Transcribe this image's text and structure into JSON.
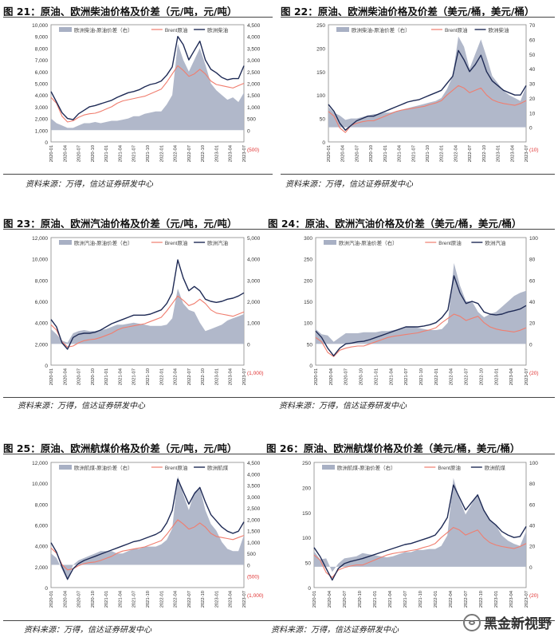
{
  "source_note": "资料来源：万得，信达证券研发中心",
  "watermark": "黑金新视野",
  "colors": {
    "spread": "#a8b0c4",
    "brent": "#f07d6e",
    "product": "#1e2a55",
    "neg_axis": "#e03030"
  },
  "chart_data": [
    {
      "id": "fig21",
      "type": "area+line",
      "title": "图 21：原油、欧洲柴油价格及价差（元/吨，元/吨）",
      "legend": [
        "欧洲柴油-原油价差（右）",
        "Brent原油",
        "欧洲柴油"
      ],
      "x_ticks": [
        "2020-01",
        "2020-04",
        "2020-07",
        "2020-10",
        "2021-01",
        "2021-04",
        "2021-07",
        "2021-10",
        "2022-01",
        "2022-04",
        "2022-07",
        "2022-10",
        "2023-01",
        "2023-04",
        "2023-07"
      ],
      "y_left": {
        "range": [
          0,
          10000
        ],
        "ticks": [
          "0",
          "1,000",
          "2,000",
          "3,000",
          "4,000",
          "5,000",
          "6,000",
          "7,000",
          "8,000",
          "9,000",
          "10,000"
        ]
      },
      "y_right": {
        "range": [
          -500,
          4500
        ],
        "ticks": [
          "(500)",
          "0",
          "500",
          "1,000",
          "1,500",
          "2,000",
          "2,500",
          "3,000",
          "3,500",
          "4,000",
          "4,500"
        ],
        "neg_labels": [
          "(500)"
        ]
      },
      "series": [
        {
          "name": "欧洲柴油",
          "values": [
            4300,
            3400,
            2500,
            2000,
            1900,
            2400,
            2700,
            3000,
            3100,
            3250,
            3400,
            3550,
            3800,
            4000,
            4200,
            4300,
            4450,
            4700,
            4900,
            5000,
            5200,
            5700,
            6400,
            9000,
            8300,
            7000,
            7800,
            8600,
            7000,
            6200,
            5900,
            5500,
            5300,
            5400,
            5400,
            6500
          ]
        },
        {
          "name": "Brent原油",
          "values": [
            3800,
            3300,
            2200,
            1700,
            1800,
            2100,
            2300,
            2400,
            2450,
            2600,
            2800,
            3000,
            3300,
            3500,
            3600,
            3700,
            3800,
            3900,
            4100,
            4300,
            4500,
            5100,
            5800,
            6500,
            6100,
            5600,
            5800,
            6200,
            5800,
            5200,
            4900,
            4800,
            4700,
            4600,
            4800,
            5000
          ]
        },
        {
          "name": "欧洲柴油-原油价差（右）",
          "values": [
            500,
            300,
            200,
            100,
            100,
            200,
            300,
            300,
            350,
            300,
            350,
            400,
            400,
            450,
            500,
            600,
            600,
            700,
            750,
            800,
            800,
            1100,
            1500,
            3700,
            3000,
            2500,
            3000,
            3500,
            2800,
            2000,
            1700,
            1500,
            1300,
            1400,
            1200,
            1600
          ]
        }
      ]
    },
    {
      "id": "fig22",
      "type": "area+line",
      "title": "图 22：原油、欧洲柴油价格及价差（美元/桶，美元/桶）",
      "legend": [
        "欧洲柴油-原油价差（右）",
        "Brent原油",
        "欧洲柴油"
      ],
      "x_ticks": [
        "2020-01",
        "2020-04",
        "2020-07",
        "2020-10",
        "2021-01",
        "2021-04",
        "2021-07",
        "2021-10",
        "2022-01",
        "2022-04",
        "2022-07",
        "2022-10",
        "2023-01",
        "2023-04",
        "2023-07"
      ],
      "y_left": {
        "range": [
          0,
          250
        ],
        "ticks": [
          "0",
          "50",
          "100",
          "150",
          "200",
          "250"
        ]
      },
      "y_right": {
        "range": [
          -10,
          70
        ],
        "ticks": [
          "(10)",
          "0",
          "10",
          "20",
          "30",
          "40",
          "50",
          "60",
          "70"
        ],
        "neg_labels": [
          "(10)"
        ]
      },
      "series": [
        {
          "name": "欧洲柴油",
          "values": [
            80,
            65,
            40,
            25,
            35,
            45,
            50,
            55,
            55,
            60,
            65,
            70,
            75,
            80,
            85,
            88,
            90,
            95,
            100,
            105,
            110,
            125,
            140,
            195,
            175,
            150,
            165,
            185,
            150,
            130,
            120,
            110,
            105,
            100,
            100,
            120
          ]
        },
        {
          "name": "Brent原油",
          "values": [
            65,
            55,
            30,
            20,
            35,
            40,
            43,
            45,
            45,
            50,
            55,
            60,
            65,
            68,
            70,
            72,
            74,
            76,
            80,
            83,
            88,
            100,
            110,
            120,
            115,
            105,
            110,
            115,
            100,
            90,
            85,
            82,
            80,
            78,
            82,
            88
          ]
        },
        {
          "name": "欧洲柴油-原油价差（右）",
          "values": [
            14,
            10,
            8,
            5,
            6,
            6,
            7,
            8,
            9,
            9,
            10,
            10,
            11,
            12,
            13,
            14,
            15,
            16,
            17,
            18,
            20,
            26,
            35,
            62,
            55,
            40,
            50,
            60,
            48,
            35,
            30,
            25,
            22,
            20,
            18,
            28
          ]
        }
      ]
    },
    {
      "id": "fig23",
      "type": "area+line",
      "title": "图 23：原油、欧洲汽油价格及价差（元/吨，元/吨）",
      "legend": [
        "欧洲汽油-原油价差（右）",
        "Brent原油",
        "欧洲汽油"
      ],
      "x_ticks": [
        "2020-01",
        "2020-04",
        "2020-07",
        "2020-10",
        "2021-01",
        "2021-04",
        "2021-07",
        "2021-10",
        "2022-01",
        "2022-04",
        "2022-07",
        "2022-10",
        "2023-01",
        "2023-04",
        "2023-07"
      ],
      "y_left": {
        "range": [
          0,
          12000
        ],
        "ticks": [
          "0",
          "2,000",
          "4,000",
          "6,000",
          "8,000",
          "10,000",
          "12,000"
        ]
      },
      "y_right": {
        "range": [
          -1000,
          5000
        ],
        "ticks": [
          "(1,000)",
          "0",
          "1,000",
          "2,000",
          "3,000",
          "4,000",
          "5,000"
        ],
        "neg_labels": [
          "(1,000)"
        ]
      },
      "series": [
        {
          "name": "欧洲汽油",
          "values": [
            4300,
            3600,
            2100,
            1500,
            2600,
            2900,
            3000,
            3000,
            3100,
            3300,
            3600,
            3900,
            4100,
            4300,
            4500,
            4700,
            4700,
            4700,
            4800,
            5000,
            5200,
            5800,
            6800,
            9900,
            8200,
            7000,
            7400,
            7000,
            6200,
            6000,
            5900,
            6000,
            6200,
            6300,
            6500,
            6800
          ]
        },
        {
          "name": "Brent原油",
          "values": [
            3800,
            3300,
            2200,
            1700,
            1800,
            2100,
            2300,
            2400,
            2450,
            2600,
            2800,
            3000,
            3300,
            3500,
            3600,
            3700,
            3800,
            3900,
            4100,
            4300,
            4500,
            5100,
            5800,
            6500,
            6100,
            5600,
            5800,
            6200,
            5800,
            5200,
            4900,
            4800,
            4700,
            4600,
            4800,
            5000
          ]
        },
        {
          "name": "欧洲汽油-原油价差（右）",
          "values": [
            700,
            450,
            150,
            60,
            500,
            600,
            650,
            600,
            600,
            650,
            700,
            800,
            900,
            900,
            950,
            1000,
            950,
            900,
            850,
            850,
            850,
            900,
            1200,
            2600,
            1900,
            1600,
            1500,
            1000,
            600,
            700,
            800,
            900,
            1100,
            1200,
            1300,
            1400
          ]
        }
      ]
    },
    {
      "id": "fig24",
      "type": "area+line",
      "title": "图 24：原油、欧洲汽油价格及价差（美元/桶，美元/桶）",
      "legend": [
        "欧洲汽油-原油价差（右）",
        "Brent原油",
        "欧洲汽油"
      ],
      "x_ticks": [
        "2020-01",
        "2020-04",
        "2020-07",
        "2020-10",
        "2021-01",
        "2021-04",
        "2021-07",
        "2021-10",
        "2022-01",
        "2022-04",
        "2022-07",
        "2022-10",
        "2023-01",
        "2023-04",
        "2023-07"
      ],
      "y_left": {
        "range": [
          0,
          300
        ],
        "ticks": [
          "0",
          "50",
          "100",
          "150",
          "200",
          "250",
          "300"
        ]
      },
      "y_right": {
        "range": [
          -20,
          100
        ],
        "ticks": [
          "(20)",
          "0",
          "20",
          "40",
          "60",
          "80",
          "100"
        ],
        "neg_labels": [
          "(20)"
        ]
      },
      "series": [
        {
          "name": "欧洲汽油",
          "values": [
            80,
            65,
            40,
            22,
            40,
            50,
            52,
            55,
            56,
            60,
            65,
            70,
            75,
            80,
            85,
            90,
            90,
            90,
            92,
            95,
            100,
            112,
            130,
            210,
            170,
            145,
            150,
            145,
            125,
            120,
            118,
            120,
            125,
            128,
            132,
            140
          ]
        },
        {
          "name": "Brent原油",
          "values": [
            65,
            55,
            30,
            20,
            35,
            40,
            43,
            45,
            45,
            50,
            55,
            60,
            65,
            68,
            70,
            72,
            74,
            76,
            80,
            83,
            88,
            100,
            110,
            120,
            115,
            105,
            110,
            115,
            100,
            90,
            85,
            82,
            80,
            78,
            82,
            88
          ]
        },
        {
          "name": "欧洲汽油-原油价差（右）",
          "values": [
            14,
            9,
            8,
            2,
            6,
            10,
            10,
            10,
            11,
            11,
            11,
            12,
            12,
            13,
            14,
            16,
            16,
            15,
            14,
            13,
            13,
            14,
            20,
            76,
            55,
            40,
            40,
            30,
            25,
            28,
            30,
            35,
            40,
            45,
            48,
            50
          ]
        }
      ]
    },
    {
      "id": "fig25",
      "type": "area+line",
      "title": "图 25：原油、欧洲航煤价格及价差（元/吨，元/吨）",
      "legend": [
        "欧洲航煤-原油价差（右）",
        "Brent原油",
        "欧洲航煤"
      ],
      "x_ticks": [
        "2020-01",
        "2020-04",
        "2020-07",
        "2020-10",
        "2021-01",
        "2021-04",
        "2021-07",
        "2021-10",
        "2022-01",
        "2022-04",
        "2022-07",
        "2022-10",
        "2023-01",
        "2023-04",
        "2023-07"
      ],
      "y_left": {
        "range": [
          0,
          12000
        ],
        "ticks": [
          "0",
          "2,000",
          "4,000",
          "6,000",
          "8,000",
          "10,000",
          "12,000"
        ]
      },
      "y_right": {
        "range": [
          -1000,
          4500
        ],
        "ticks": [
          "(1,000)",
          "(500)",
          "0",
          "500",
          "1,000",
          "1,500",
          "2,000",
          "2,500",
          "3,000",
          "3,500",
          "4,000",
          "4,500"
        ],
        "neg_labels": [
          "(1,000)",
          "(500)"
        ]
      },
      "series": [
        {
          "name": "欧洲航煤",
          "values": [
            4300,
            3400,
            2000,
            800,
            1800,
            2300,
            2600,
            2800,
            3000,
            3200,
            3400,
            3600,
            3800,
            4000,
            4200,
            4400,
            4500,
            4700,
            4900,
            5100,
            5400,
            6200,
            7400,
            10400,
            9200,
            8000,
            9000,
            9600,
            8200,
            7000,
            6400,
            5800,
            5400,
            5200,
            5400,
            6300
          ]
        },
        {
          "name": "Brent原油",
          "values": [
            3800,
            3300,
            2200,
            1700,
            1800,
            2100,
            2300,
            2400,
            2450,
            2600,
            2800,
            3000,
            3300,
            3500,
            3600,
            3700,
            3800,
            3900,
            4100,
            4300,
            4500,
            5100,
            5800,
            6500,
            6100,
            5600,
            5800,
            6200,
            5800,
            5200,
            4900,
            4800,
            4700,
            4600,
            4800,
            5000
          ]
        },
        {
          "name": "欧洲航煤-原油价差（右）",
          "values": [
            500,
            300,
            -200,
            -700,
            0,
            200,
            300,
            400,
            500,
            600,
            600,
            600,
            500,
            500,
            600,
            700,
            700,
            800,
            800,
            800,
            900,
            1100,
            1600,
            3900,
            3100,
            2400,
            3200,
            3400,
            2400,
            1800,
            1500,
            1000,
            700,
            600,
            600,
            1300
          ]
        }
      ]
    },
    {
      "id": "fig26",
      "type": "area+line",
      "title": "图 26：原油、欧洲航煤价格及价差（美元/桶，美元/桶）",
      "legend": [
        "欧洲航煤-原油价差（右）",
        "Brent原油",
        "欧洲航煤"
      ],
      "x_ticks": [
        "2020-01",
        "2020-04",
        "2020-07",
        "2020-10",
        "2021-01",
        "2021-04",
        "2021-07",
        "2021-10",
        "2022-01",
        "2022-04",
        "2022-07",
        "2022-10",
        "2023-01",
        "2023-04",
        "2023-07"
      ],
      "y_left": {
        "range": [
          0,
          250
        ],
        "ticks": [
          "0",
          "50",
          "100",
          "150",
          "200",
          "250"
        ]
      },
      "y_right": {
        "range": [
          -20,
          100
        ],
        "ticks": [
          "(20)",
          "0",
          "20",
          "40",
          "60",
          "80",
          "100"
        ],
        "neg_labels": [
          "(20)"
        ]
      },
      "series": [
        {
          "name": "欧洲航煤",
          "values": [
            80,
            62,
            38,
            15,
            38,
            48,
            52,
            55,
            58,
            62,
            66,
            70,
            74,
            78,
            82,
            86,
            88,
            92,
            96,
            100,
            105,
            120,
            140,
            205,
            180,
            155,
            170,
            185,
            155,
            135,
            125,
            112,
            105,
            100,
            102,
            122
          ]
        },
        {
          "name": "Brent原油",
          "values": [
            65,
            55,
            30,
            20,
            35,
            40,
            43,
            45,
            45,
            50,
            55,
            60,
            65,
            68,
            70,
            72,
            74,
            76,
            80,
            83,
            88,
            100,
            110,
            120,
            115,
            105,
            110,
            115,
            100,
            90,
            85,
            82,
            80,
            78,
            82,
            88
          ]
        },
        {
          "name": "欧洲航煤-原油价差（右）",
          "values": [
            15,
            7,
            8,
            -5,
            3,
            8,
            9,
            10,
            13,
            12,
            11,
            10,
            9,
            10,
            12,
            14,
            14,
            16,
            16,
            17,
            17,
            20,
            30,
            85,
            65,
            50,
            60,
            70,
            55,
            45,
            40,
            30,
            25,
            22,
            20,
            34
          ]
        }
      ]
    }
  ]
}
